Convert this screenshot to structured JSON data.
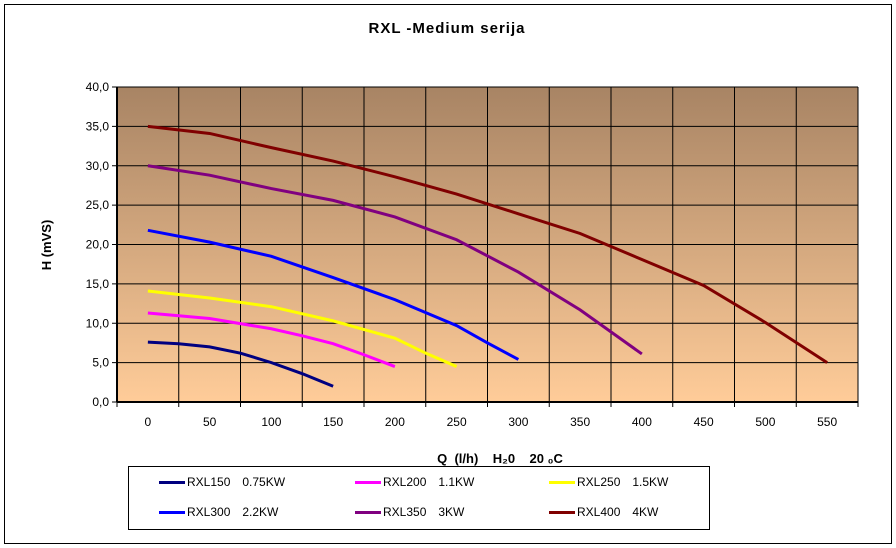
{
  "chart_data": {
    "type": "line",
    "title": "RXL -Medium serija",
    "xlabel": "Q  (l/h)    H₂0    20 ₀C",
    "ylabel": "H (mVS)",
    "x_ticks": [
      "0",
      "50",
      "100",
      "150",
      "200",
      "250",
      "300",
      "350",
      "400",
      "450",
      "500",
      "550"
    ],
    "y_ticks": [
      "0,0",
      "5,0",
      "10,0",
      "15,0",
      "20,0",
      "25,0",
      "30,0",
      "35,0",
      "40,0"
    ],
    "xlim": [
      -25,
      575
    ],
    "ylim": [
      0,
      40
    ],
    "grid": true,
    "background": {
      "top": "#A88464",
      "bottom": "#FFCC99"
    },
    "legend_position": "bottom",
    "series": [
      {
        "name": "RXL150",
        "power": "0.75KW",
        "color": "#000080",
        "x": [
          0,
          25,
          50,
          75,
          100,
          125,
          150
        ],
        "y": [
          7.6,
          7.4,
          7.0,
          6.2,
          5.0,
          3.6,
          2.0
        ]
      },
      {
        "name": "RXL200",
        "power": "1.1KW",
        "color": "#FF00FF",
        "x": [
          0,
          50,
          100,
          125,
          150,
          175,
          200
        ],
        "y": [
          11.3,
          10.6,
          9.3,
          8.4,
          7.4,
          6.0,
          4.5
        ]
      },
      {
        "name": "RXL250",
        "power": "1.5KW",
        "color": "#FFFF00",
        "x": [
          0,
          50,
          100,
          150,
          200,
          225,
          250
        ],
        "y": [
          14.1,
          13.2,
          12.1,
          10.3,
          8.1,
          6.2,
          4.5
        ]
      },
      {
        "name": "RXL300",
        "power": "2.2KW",
        "color": "#0000FF",
        "x": [
          0,
          50,
          100,
          150,
          200,
          250,
          275,
          300
        ],
        "y": [
          21.8,
          20.3,
          18.5,
          15.8,
          13.0,
          9.7,
          7.5,
          5.4
        ]
      },
      {
        "name": "RXL350",
        "power": "3KW",
        "color": "#800080",
        "x": [
          0,
          50,
          100,
          150,
          200,
          250,
          300,
          350,
          400
        ],
        "y": [
          30.0,
          28.8,
          27.1,
          25.6,
          23.5,
          20.6,
          16.5,
          11.7,
          6.1
        ]
      },
      {
        "name": "RXL400",
        "power": "4KW",
        "color": "#800000",
        "x": [
          0,
          50,
          100,
          150,
          200,
          250,
          300,
          350,
          400,
          450,
          500,
          550
        ],
        "y": [
          35.0,
          34.1,
          32.3,
          30.6,
          28.6,
          26.4,
          23.9,
          21.4,
          18.1,
          14.8,
          10.1,
          5.0
        ]
      }
    ]
  }
}
